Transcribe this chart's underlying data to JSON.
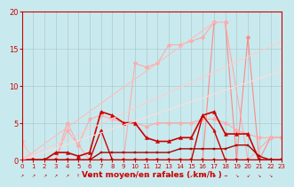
{
  "bg_color": "#c8eaee",
  "grid_color": "#b0c8cc",
  "xlabel": "Vent moyen/en rafales ( km/h )",
  "xlabel_color": "#cc0000",
  "tick_color": "#cc0000",
  "xlim": [
    0,
    23
  ],
  "ylim": [
    0,
    20
  ],
  "yticks": [
    0,
    5,
    10,
    15,
    20
  ],
  "xticks": [
    0,
    1,
    2,
    3,
    4,
    5,
    6,
    7,
    8,
    9,
    10,
    11,
    12,
    13,
    14,
    15,
    16,
    17,
    18,
    19,
    20,
    21,
    22,
    23
  ],
  "lines": [
    {
      "comment": "light pink - starts at 2.5 at x=0, drops to 0",
      "x": [
        0,
        1,
        2,
        3,
        4,
        5,
        6,
        7,
        8,
        9,
        10,
        11,
        12,
        13,
        14,
        15,
        16,
        17,
        18,
        19,
        20,
        21,
        22,
        23
      ],
      "y": [
        2.5,
        0,
        0,
        0,
        0,
        0,
        0,
        0,
        0,
        0,
        0,
        0,
        0,
        0,
        0,
        0,
        0,
        0,
        0,
        0,
        0,
        0,
        0,
        0
      ],
      "color": "#ffbbbb",
      "marker": "D",
      "lw": 0.8,
      "ms": 2.5
    },
    {
      "comment": "light pink rising line - linear rise to ~18.5 at x=17, then drops at x=20 to 16.5",
      "x": [
        0,
        1,
        2,
        3,
        4,
        5,
        6,
        7,
        8,
        9,
        10,
        11,
        12,
        13,
        14,
        15,
        16,
        17,
        18,
        19,
        20,
        21,
        22,
        23
      ],
      "y": [
        0,
        0,
        0,
        0,
        0,
        0,
        0,
        0,
        0,
        0,
        0,
        0,
        0,
        0,
        0,
        0,
        0,
        18.5,
        18.5,
        0,
        16.5,
        0,
        3,
        3
      ],
      "color": "#ff8888",
      "marker": "D",
      "lw": 0.8,
      "ms": 2.5
    },
    {
      "comment": "pale pink - near linear from 0 to ~18 at x=17, then 16.5 at x=20 drop to 3",
      "x": [
        0,
        1,
        2,
        3,
        4,
        5,
        6,
        7,
        8,
        9,
        10,
        11,
        12,
        13,
        14,
        15,
        16,
        17,
        18,
        20,
        22,
        23
      ],
      "y": [
        0,
        0,
        0,
        0,
        4,
        2,
        0,
        0,
        0,
        0,
        13,
        12.5,
        13,
        15.5,
        15.5,
        16,
        16.5,
        18.5,
        18.5,
        0,
        3,
        3
      ],
      "color": "#ffaaaa",
      "marker": "D",
      "lw": 0.8,
      "ms": 2.5
    },
    {
      "comment": "pale pink diagonal - truly linear from 0 to 18",
      "x": [
        0,
        1,
        2,
        3,
        4,
        5,
        6,
        7,
        8,
        9,
        10,
        11,
        12,
        13,
        14,
        15,
        16,
        17,
        18,
        19,
        20,
        21,
        22,
        23
      ],
      "y": [
        0,
        0,
        0,
        0,
        0,
        0,
        0,
        0,
        0,
        0,
        0,
        0,
        0,
        0,
        0,
        0,
        0,
        0,
        0,
        0,
        0,
        0,
        0,
        0
      ],
      "color": "#ffcccc",
      "marker": "D",
      "lw": 0.8,
      "ms": 2.0
    },
    {
      "comment": "straight line from 0 at x=0 to ~18 at x=18",
      "x": [
        0,
        17,
        18
      ],
      "y": [
        0,
        18.5,
        18.5
      ],
      "color": "#ffbbbb",
      "marker": null,
      "lw": 0.8,
      "ms": 0
    },
    {
      "comment": "medium pink - rises from 0 at x=0 to ~5 plateau",
      "x": [
        0,
        1,
        2,
        3,
        4,
        5,
        6,
        7,
        8,
        9,
        10,
        11,
        12,
        13,
        14,
        15,
        16,
        17,
        18,
        19,
        20,
        21,
        22,
        23
      ],
      "y": [
        0,
        0,
        0,
        0,
        5,
        2,
        5.5,
        6,
        5.5,
        5,
        5,
        4.5,
        5,
        5,
        5,
        5,
        5.5,
        5.5,
        5,
        4,
        3.5,
        3,
        3,
        3
      ],
      "color": "#ffaaaa",
      "marker": "D",
      "lw": 0.8,
      "ms": 2.5
    },
    {
      "comment": "dark red main - rises from 0 to ~6 with noise",
      "x": [
        0,
        1,
        2,
        3,
        4,
        5,
        6,
        7,
        8,
        9,
        10,
        11,
        12,
        13,
        14,
        15,
        16,
        17,
        18,
        19,
        20,
        21,
        22,
        23
      ],
      "y": [
        0,
        0,
        0,
        1,
        1,
        0.5,
        1,
        6.5,
        6,
        5,
        5,
        3,
        2.5,
        2.5,
        3,
        3,
        6,
        6.5,
        3.5,
        3.5,
        3.5,
        0,
        0,
        0
      ],
      "color": "#cc0000",
      "marker": "^",
      "lw": 1.2,
      "ms": 3
    },
    {
      "comment": "dark red - lower flat then rises",
      "x": [
        0,
        1,
        2,
        3,
        4,
        5,
        6,
        7,
        8,
        9,
        10,
        11,
        12,
        13,
        14,
        15,
        16,
        17,
        18,
        19,
        20,
        21,
        22,
        23
      ],
      "y": [
        0,
        0,
        0,
        0,
        0,
        0,
        0,
        4,
        0,
        0,
        0,
        0,
        0,
        0,
        0,
        0,
        6,
        4,
        0,
        0,
        0,
        0,
        0,
        0
      ],
      "color": "#cc0000",
      "marker": "^",
      "lw": 1.0,
      "ms": 2.5
    },
    {
      "comment": "dark red flat - stays near 1-2",
      "x": [
        0,
        1,
        2,
        3,
        4,
        5,
        6,
        7,
        8,
        9,
        10,
        11,
        12,
        13,
        14,
        15,
        16,
        17,
        18,
        19,
        20,
        21,
        22,
        23
      ],
      "y": [
        0,
        0,
        0,
        0,
        0,
        0,
        0,
        1,
        1,
        1,
        1,
        1,
        1,
        1,
        1.5,
        1.5,
        1.5,
        1.5,
        1.5,
        2,
        2,
        0.5,
        0,
        0
      ],
      "color": "#aa0000",
      "marker": "s",
      "lw": 1.0,
      "ms": 2
    },
    {
      "comment": "very dark red - flat near 0",
      "x": [
        0,
        1,
        2,
        3,
        4,
        5,
        6,
        7,
        8,
        9,
        10,
        11,
        12,
        13,
        14,
        15,
        16,
        17,
        18,
        19,
        20,
        21,
        22,
        23
      ],
      "y": [
        0,
        0,
        0,
        0,
        0,
        0,
        0,
        0,
        0,
        0,
        0,
        0,
        0,
        0,
        0,
        0,
        0,
        0,
        0,
        0,
        0,
        0,
        0,
        0
      ],
      "color": "#880000",
      "marker": "s",
      "lw": 0.8,
      "ms": 1.5
    },
    {
      "comment": "linear pale line 1 - from 0 to ~16",
      "x": [
        0,
        23
      ],
      "y": [
        0,
        16
      ],
      "color": "#ffcccc",
      "marker": null,
      "lw": 0.8,
      "ms": 0
    },
    {
      "comment": "linear pale line 2 - from 0 to ~12",
      "x": [
        0,
        23
      ],
      "y": [
        0,
        12
      ],
      "color": "#ffdddd",
      "marker": null,
      "lw": 0.8,
      "ms": 0
    }
  ]
}
